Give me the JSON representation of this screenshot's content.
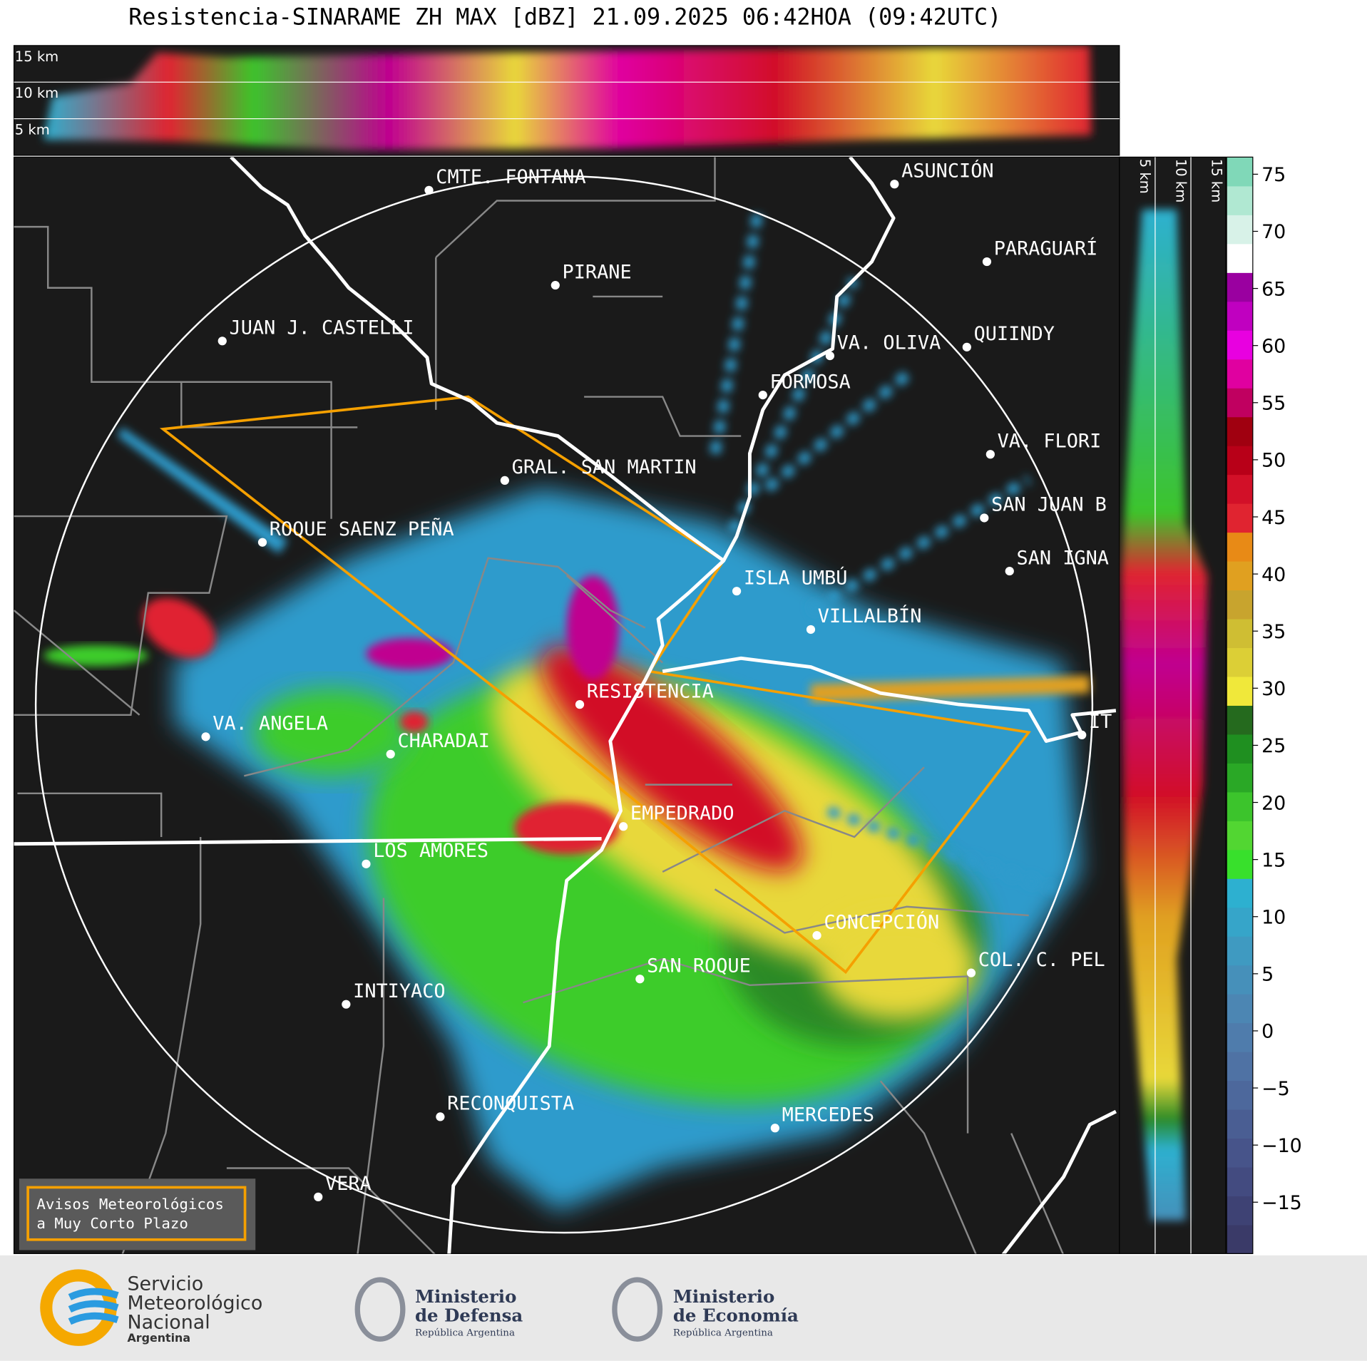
{
  "header": {
    "title": "Resistencia-SINARAME ZH MAX [dBZ] 21.09.2025 06:42HOA (09:42UTC)"
  },
  "cross_section": {
    "top_labels": [
      "15 km",
      "10 km",
      "5 km"
    ],
    "side_labels": [
      "5 km",
      "10 km",
      "15 km"
    ]
  },
  "map": {
    "cities": [
      "CMTE. FONTANA",
      "ASUNCIÓN",
      "PIRANE",
      "PARAGUARÍ",
      "JUAN J. CASTELLI",
      "VA. OLIVA",
      "QUIINDY",
      "FORMOSA",
      "VA. FLORI",
      "GRAL. SAN MARTIN",
      "SAN JUAN B",
      "ROQUE SAENZ PEÑA",
      "SAN IGNA",
      "ISLA UMBÚ",
      "VILLALBÍN",
      "RESISTENCIA",
      "IT",
      "VA. ANGELA",
      "CHARADAI",
      "EMPEDRADO",
      "LOS AMORES",
      "CONCEPCIÓN",
      "COL. C. PEL",
      "SAN ROQUE",
      "INTIYACO",
      "RECONQUISTA",
      "MERCEDES",
      "VERA"
    ]
  },
  "colorbar": {
    "lim": [
      -19.5,
      76.5
    ],
    "ticks": [
      75,
      70,
      65,
      60,
      55,
      50,
      45,
      40,
      35,
      30,
      25,
      20,
      15,
      10,
      5,
      0,
      {
        "value": -5,
        "label": "−5"
      },
      {
        "value": -10,
        "label": "−10"
      },
      {
        "value": -15,
        "label": "−15"
      }
    ],
    "colors": [
      "#3a3a68",
      "#3e4274",
      "#434b80",
      "#47548a",
      "#4a5e93",
      "#4d689c",
      "#4f72a4",
      "#4f7cac",
      "#4c86b3",
      "#4690ba",
      "#3f9ac1",
      "#36a5c9",
      "#2db0d0",
      "#38e02c",
      "#52d632",
      "#3cc42c",
      "#2aa826",
      "#1f8f20",
      "#256a1e",
      "#f0e83a",
      "#dccf36",
      "#cfbe33",
      "#c8a42e",
      "#e0a020",
      "#e88a16",
      "#e02430",
      "#d21028",
      "#b80018",
      "#a00010",
      "#c00060",
      "#e000a0",
      "#e800e0",
      "#c000c0",
      "#9a00a0",
      "#ffffff",
      "#d8f2e8",
      "#b0e8d2",
      "#80d8b8"
    ]
  },
  "warning_box": {
    "lines": [
      "Avisos Meteorológicos",
      "a Muy Corto Plazo"
    ]
  },
  "footer": {
    "smn": [
      "Servicio",
      "Meteorológico",
      "Nacional",
      "Argentina"
    ],
    "defensa": [
      "Ministerio",
      "de Defensa",
      "República Argentina"
    ],
    "economia": [
      "Ministerio",
      "de Economía",
      "República Argentina"
    ]
  }
}
